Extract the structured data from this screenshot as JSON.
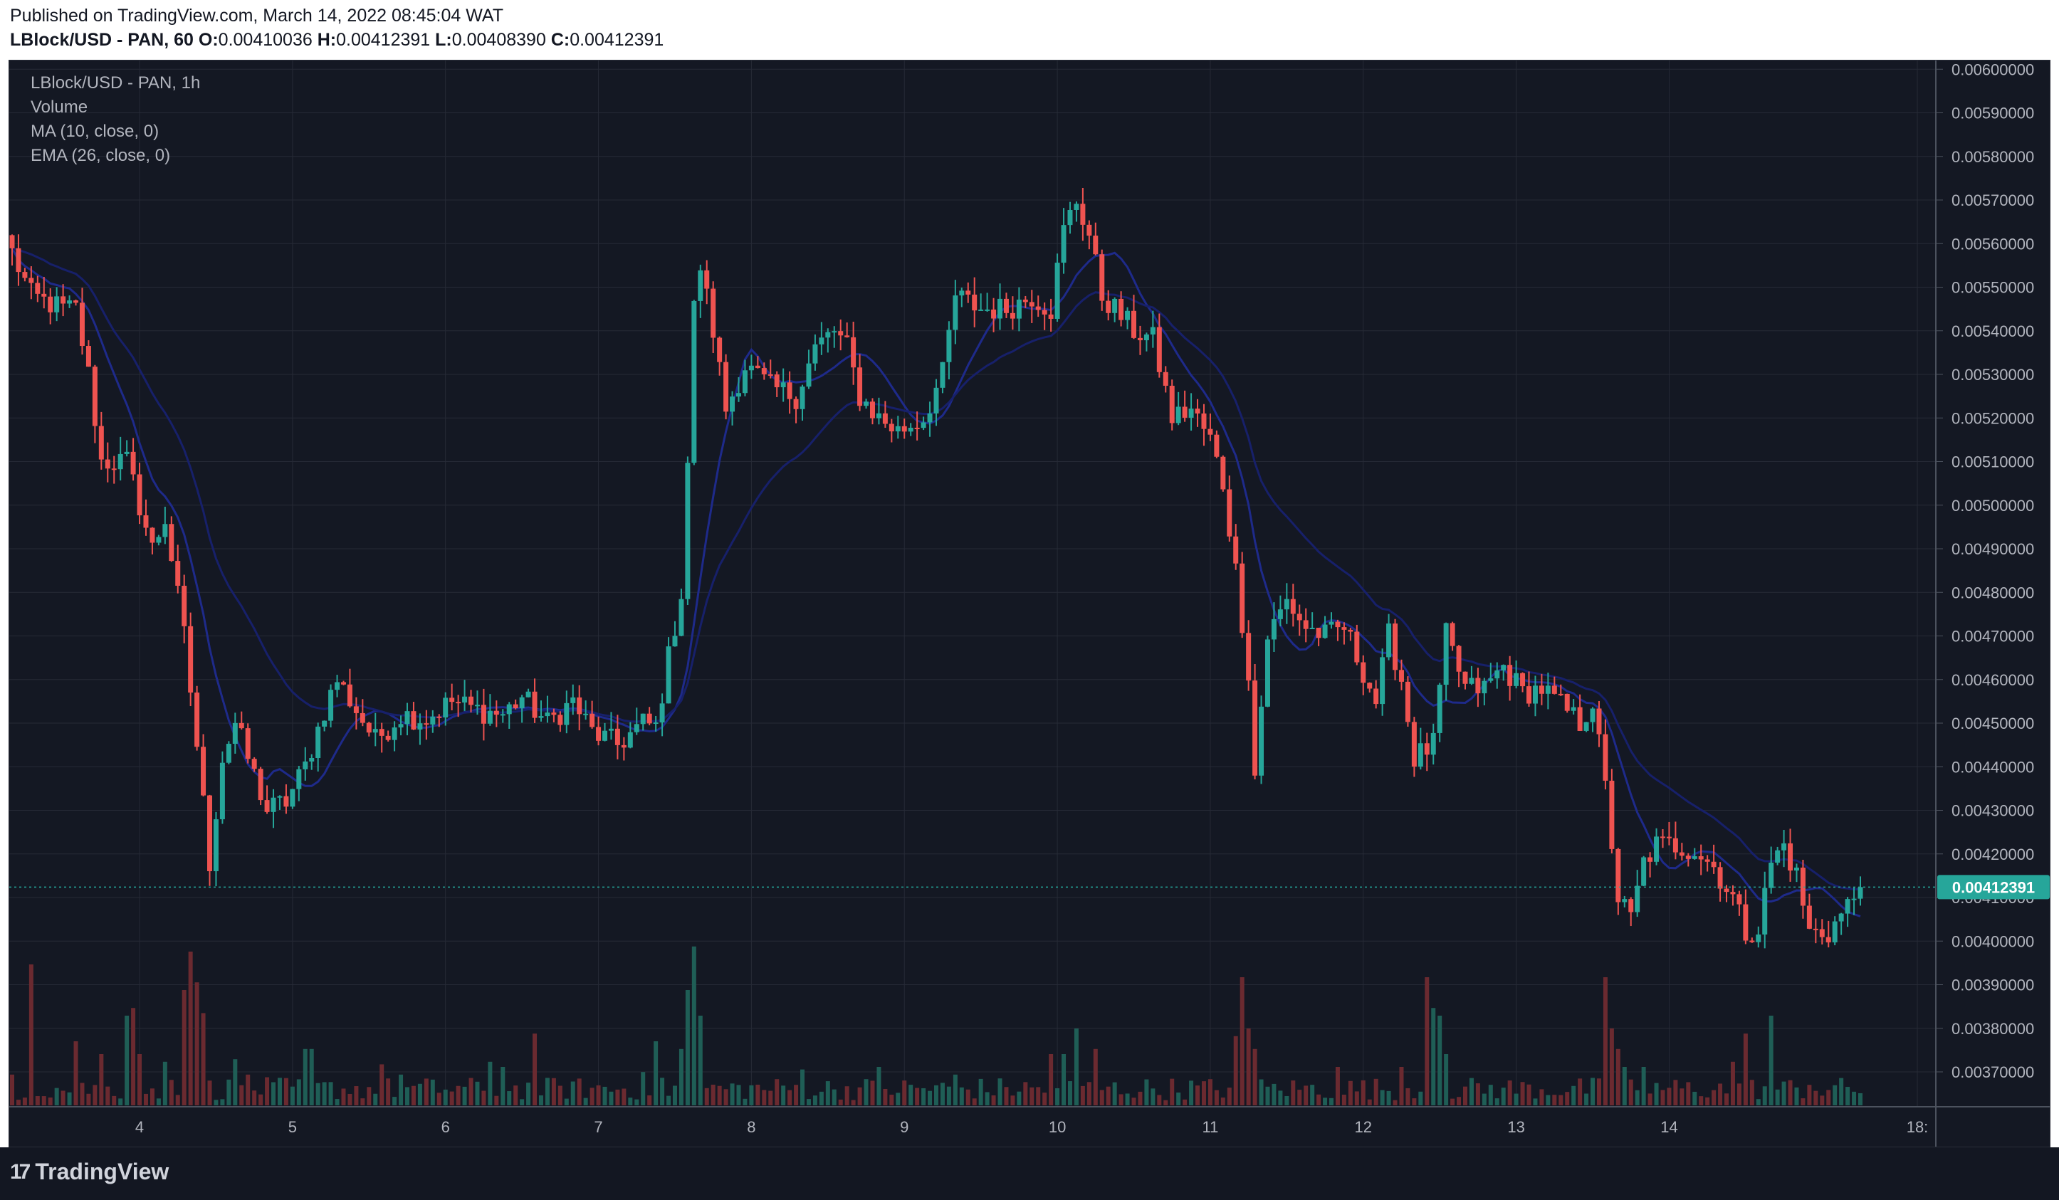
{
  "header": {
    "published": "Published on TradingView.com, March 14, 2022 08:45:04 WAT",
    "symbol": "LBlock/USD - PAN, 60",
    "o_label": "O:",
    "o_value": "0.00410036",
    "h_label": "H:",
    "h_value": "0.00412391",
    "l_label": "L:",
    "l_value": "0.00408390",
    "c_label": "C:",
    "c_value": "0.00412391"
  },
  "legend": {
    "title": "LBlock/USD - PAN, 1h",
    "volume": "Volume",
    "ma": "MA (10, close, 0)",
    "ema": "EMA (26, close, 0)"
  },
  "footer": {
    "brand": "TradingView",
    "logo_glyph": "17"
  },
  "colors": {
    "up": "#26a69a",
    "down": "#ef5350",
    "up_volume": "#1f5e56",
    "down_volume": "#6b2a30",
    "ma_line": "#1e2a8a",
    "background": "#141823",
    "grid": "#262a36",
    "last_price_badge": "#26a69a"
  },
  "chart_data": {
    "type": "candlestick",
    "title": "LBlock/USD - PAN, 1h",
    "xlabel": "",
    "ylabel": "",
    "ylim": [
      0.00362,
      0.00602
    ],
    "y_ticks": [
      "0.00600000",
      "0.00590000",
      "0.00580000",
      "0.00570000",
      "0.00560000",
      "0.00550000",
      "0.00540000",
      "0.00530000",
      "0.00520000",
      "0.00510000",
      "0.00500000",
      "0.00490000",
      "0.00480000",
      "0.00470000",
      "0.00460000",
      "0.00450000",
      "0.00440000",
      "0.00430000",
      "0.00420000",
      "0.00410000",
      "0.00400000",
      "0.00390000",
      "0.00380000",
      "0.00370000"
    ],
    "x_ticks": [
      "4",
      "5",
      "6",
      "7",
      "8",
      "9",
      "10",
      "11",
      "12",
      "13",
      "14",
      "18:"
    ],
    "last_price": 0.00412391,
    "last_price_label": "0.00412391",
    "grid": true,
    "close_anchors": [
      [
        0,
        0.00558
      ],
      [
        3,
        0.00548
      ],
      [
        8,
        0.00545
      ],
      [
        10,
        0.00545
      ],
      [
        12,
        0.0053
      ],
      [
        14,
        0.0051
      ],
      [
        18,
        0.0051
      ],
      [
        20,
        0.005
      ],
      [
        22,
        0.0049
      ],
      [
        24,
        0.00497
      ],
      [
        27,
        0.0047
      ],
      [
        29,
        0.00445
      ],
      [
        31,
        0.00418
      ],
      [
        33,
        0.00442
      ],
      [
        35,
        0.0045
      ],
      [
        37,
        0.00442
      ],
      [
        40,
        0.0043
      ],
      [
        43,
        0.00432
      ],
      [
        46,
        0.0044
      ],
      [
        49,
        0.00453
      ],
      [
        51,
        0.0046
      ],
      [
        54,
        0.00453
      ],
      [
        57,
        0.00446
      ],
      [
        61,
        0.00452
      ],
      [
        65,
        0.00451
      ],
      [
        69,
        0.00455
      ],
      [
        73,
        0.00453
      ],
      [
        77,
        0.00452
      ],
      [
        80,
        0.00456
      ],
      [
        84,
        0.0045
      ],
      [
        88,
        0.00455
      ],
      [
        91,
        0.00448
      ],
      [
        95,
        0.00445
      ],
      [
        99,
        0.0045
      ],
      [
        101,
        0.00449
      ],
      [
        103,
        0.00465
      ],
      [
        105,
        0.0048
      ],
      [
        106,
        0.0051
      ],
      [
        107,
        0.00545
      ],
      [
        108,
        0.00555
      ],
      [
        110,
        0.0054
      ],
      [
        112,
        0.00522
      ],
      [
        115,
        0.00532
      ],
      [
        119,
        0.00527
      ],
      [
        123,
        0.00525
      ],
      [
        126,
        0.00536
      ],
      [
        129,
        0.0054
      ],
      [
        131,
        0.00536
      ],
      [
        133,
        0.00525
      ],
      [
        136,
        0.0052
      ],
      [
        139,
        0.00517
      ],
      [
        143,
        0.0052
      ],
      [
        146,
        0.0053
      ],
      [
        148,
        0.00548
      ],
      [
        152,
        0.00545
      ],
      [
        156,
        0.00545
      ],
      [
        160,
        0.00548
      ],
      [
        163,
        0.00545
      ],
      [
        165,
        0.00563
      ],
      [
        167,
        0.0057
      ],
      [
        169,
        0.00562
      ],
      [
        171,
        0.00548
      ],
      [
        173,
        0.00545
      ],
      [
        176,
        0.0054
      ],
      [
        179,
        0.00538
      ],
      [
        182,
        0.0052
      ],
      [
        185,
        0.00522
      ],
      [
        188,
        0.00515
      ],
      [
        190,
        0.00505
      ],
      [
        192,
        0.00485
      ],
      [
        194,
        0.00462
      ],
      [
        195,
        0.00438
      ],
      [
        197,
        0.0047
      ],
      [
        200,
        0.00478
      ],
      [
        203,
        0.00472
      ],
      [
        206,
        0.0047
      ],
      [
        209,
        0.00472
      ],
      [
        212,
        0.00462
      ],
      [
        214,
        0.00455
      ],
      [
        216,
        0.0047
      ],
      [
        218,
        0.0046
      ],
      [
        220,
        0.00442
      ],
      [
        223,
        0.00445
      ],
      [
        225,
        0.0047
      ],
      [
        228,
        0.00458
      ],
      [
        231,
        0.00458
      ],
      [
        234,
        0.00463
      ],
      [
        237,
        0.00457
      ],
      [
        240,
        0.00458
      ],
      [
        243,
        0.00454
      ],
      [
        246,
        0.0045
      ],
      [
        248,
        0.00455
      ],
      [
        250,
        0.00435
      ],
      [
        252,
        0.0041
      ],
      [
        254,
        0.00405
      ],
      [
        256,
        0.00418
      ],
      [
        258,
        0.00422
      ],
      [
        261,
        0.00422
      ],
      [
        264,
        0.00421
      ],
      [
        267,
        0.00417
      ],
      [
        270,
        0.0041
      ],
      [
        272,
        0.00402
      ],
      [
        274,
        0.00403
      ],
      [
        276,
        0.00418
      ],
      [
        278,
        0.00422
      ],
      [
        280,
        0.00415
      ],
      [
        282,
        0.00402
      ],
      [
        285,
        0.00402
      ],
      [
        288,
        0.00408
      ],
      [
        290,
        0.00412391
      ]
    ],
    "volume_peaks": [
      [
        0,
        0.12
      ],
      [
        3,
        0.55
      ],
      [
        10,
        0.25
      ],
      [
        14,
        0.2
      ],
      [
        18,
        0.35
      ],
      [
        19,
        0.38
      ],
      [
        20,
        0.2
      ],
      [
        24,
        0.17
      ],
      [
        27,
        0.45
      ],
      [
        28,
        0.6
      ],
      [
        29,
        0.48
      ],
      [
        30,
        0.36
      ],
      [
        35,
        0.18
      ],
      [
        37,
        0.12
      ],
      [
        46,
        0.22
      ],
      [
        47,
        0.22
      ],
      [
        58,
        0.16
      ],
      [
        61,
        0.12
      ],
      [
        75,
        0.17
      ],
      [
        77,
        0.15
      ],
      [
        82,
        0.28
      ],
      [
        99,
        0.13
      ],
      [
        101,
        0.25
      ],
      [
        105,
        0.22
      ],
      [
        106,
        0.45
      ],
      [
        107,
        0.62
      ],
      [
        108,
        0.35
      ],
      [
        124,
        0.14
      ],
      [
        136,
        0.15
      ],
      [
        148,
        0.12
      ],
      [
        163,
        0.2
      ],
      [
        165,
        0.2
      ],
      [
        167,
        0.3
      ],
      [
        170,
        0.22
      ],
      [
        192,
        0.27
      ],
      [
        193,
        0.5
      ],
      [
        194,
        0.3
      ],
      [
        195,
        0.22
      ],
      [
        208,
        0.15
      ],
      [
        218,
        0.15
      ],
      [
        222,
        0.5
      ],
      [
        223,
        0.38
      ],
      [
        224,
        0.35
      ],
      [
        225,
        0.2
      ],
      [
        250,
        0.5
      ],
      [
        251,
        0.3
      ],
      [
        252,
        0.22
      ],
      [
        253,
        0.15
      ],
      [
        256,
        0.15
      ],
      [
        270,
        0.17
      ],
      [
        272,
        0.28
      ],
      [
        276,
        0.35
      ],
      [
        282,
        0.08
      ]
    ]
  }
}
